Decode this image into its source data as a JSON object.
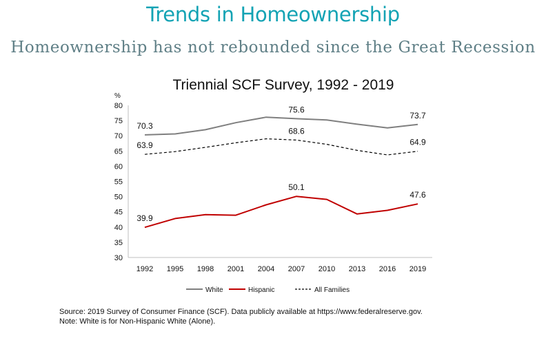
{
  "header": {
    "title": "Trends in Homeownership",
    "subtitle": "Homeownership has not rebounded since the Great Recession"
  },
  "chart_data": {
    "type": "line",
    "title": "Triennial SCF Survey, 1992 - 2019",
    "ylabel": "%",
    "xlabel": "",
    "categories": [
      "1992",
      "1995",
      "1998",
      "2001",
      "2004",
      "2007",
      "2010",
      "2013",
      "2016",
      "2019"
    ],
    "ylim": [
      30,
      80
    ],
    "yticks": [
      "30",
      "35",
      "40",
      "45",
      "50",
      "55",
      "60",
      "65",
      "70",
      "75",
      "80"
    ],
    "grid": false,
    "legend": "bottom",
    "series": [
      {
        "name": "White",
        "color": "#7f7f7f",
        "style": "solid",
        "values": [
          70.3,
          70.6,
          72.0,
          74.3,
          76.1,
          75.6,
          75.2,
          73.8,
          72.6,
          73.7
        ],
        "labels": [
          {
            "index": 0,
            "text": "70.3"
          },
          {
            "index": 5,
            "text": "75.6"
          },
          {
            "index": 9,
            "text": "73.7"
          }
        ]
      },
      {
        "name": "Hispanic",
        "color": "#c00000",
        "style": "solid",
        "values": [
          39.9,
          42.8,
          44.1,
          43.9,
          47.3,
          50.1,
          49.1,
          44.3,
          45.5,
          47.6
        ],
        "labels": [
          {
            "index": 0,
            "text": "39.9"
          },
          {
            "index": 5,
            "text": "50.1"
          },
          {
            "index": 9,
            "text": "47.6"
          }
        ]
      },
      {
        "name": "All Families",
        "color": "#000000",
        "style": "dashed",
        "values": [
          63.9,
          64.8,
          66.2,
          67.7,
          69.0,
          68.6,
          67.2,
          65.2,
          63.7,
          64.9
        ],
        "labels": [
          {
            "index": 0,
            "text": "63.9"
          },
          {
            "index": 5,
            "text": "68.6"
          },
          {
            "index": 9,
            "text": "64.9"
          }
        ]
      }
    ]
  },
  "footer": {
    "source_line": "Source: 2019 Survey of Consumer Finance (SCF). Data publicly available at https://www.federalreserve.gov.",
    "note_line": "Note: White is for Non-Hispanic White (Alone)."
  }
}
